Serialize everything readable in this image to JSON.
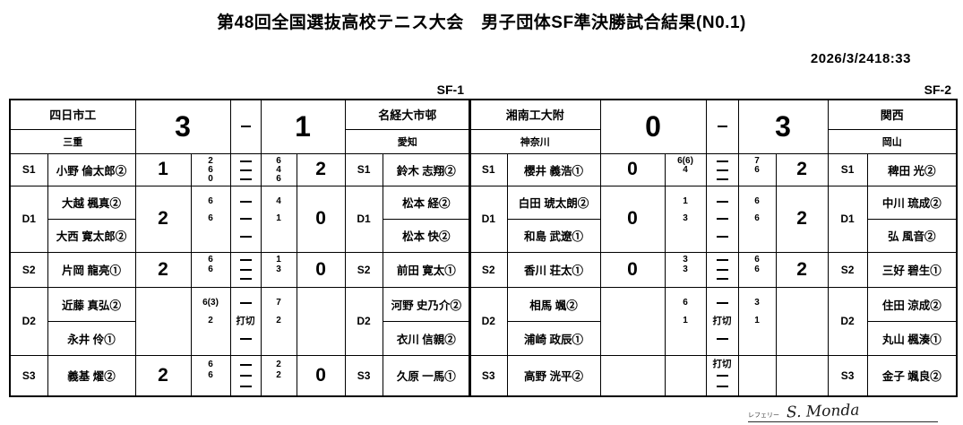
{
  "title": "第48回全国選抜高校テニス大会　男子団体SF準決勝試合結果(N0.1)",
  "datetime": "2026/3/2418:33",
  "signature": {
    "label": "レフェリー",
    "name": "S. Monda"
  },
  "matches": [
    {
      "label": "SF-1",
      "home": {
        "school": "四日市工",
        "pref": "三重",
        "score": "3"
      },
      "score_dash": "－",
      "away": {
        "school": "名経大市邨",
        "pref": "愛知",
        "score": "1"
      },
      "rows": [
        {
          "pos": "S1",
          "type": "singles",
          "home_players": [
            "小野 倫太郎②"
          ],
          "away_players": [
            "鈴木 志翔②"
          ],
          "home_score": "1",
          "away_score": "2",
          "home_sets": [
            "2",
            "6",
            "0"
          ],
          "mid": [
            "－",
            "－",
            "－"
          ],
          "away_sets": [
            "6",
            "4",
            "6"
          ]
        },
        {
          "pos": "D1",
          "type": "doubles",
          "home_players": [
            "大越 楓真②",
            "大西 寛太郎②"
          ],
          "away_players": [
            "松本 経②",
            "松本 快②"
          ],
          "home_score": "2",
          "away_score": "0",
          "home_sets": [
            "6",
            "6",
            ""
          ],
          "mid": [
            "－",
            "－",
            "－"
          ],
          "away_sets": [
            "4",
            "1",
            ""
          ]
        },
        {
          "pos": "S2",
          "type": "singles",
          "home_players": [
            "片岡 龍亮①"
          ],
          "away_players": [
            "前田 寛太①"
          ],
          "home_score": "2",
          "away_score": "0",
          "home_sets": [
            "6",
            "6",
            ""
          ],
          "mid": [
            "－",
            "－",
            "－"
          ],
          "away_sets": [
            "1",
            "3",
            ""
          ]
        },
        {
          "pos": "D2",
          "type": "doubles",
          "home_players": [
            "近藤 真弘②",
            "永井 伶①"
          ],
          "away_players": [
            "河野 史乃介②",
            "衣川 信親②"
          ],
          "home_score": "",
          "away_score": "",
          "home_sets": [
            "6(3)",
            "2",
            ""
          ],
          "mid": [
            "－",
            "打切",
            "－"
          ],
          "away_sets": [
            "7",
            "2",
            ""
          ]
        },
        {
          "pos": "S3",
          "type": "singles",
          "home_players": [
            "義基 燿②"
          ],
          "away_players": [
            "久原 一馬①"
          ],
          "home_score": "2",
          "away_score": "0",
          "home_sets": [
            "6",
            "6",
            ""
          ],
          "mid": [
            "－",
            "－",
            "－"
          ],
          "away_sets": [
            "2",
            "2",
            ""
          ]
        }
      ]
    },
    {
      "label": "SF-2",
      "home": {
        "school": "湘南工大附",
        "pref": "神奈川",
        "score": "0"
      },
      "score_dash": "－",
      "away": {
        "school": "関西",
        "pref": "岡山",
        "score": "3"
      },
      "rows": [
        {
          "pos": "S1",
          "type": "singles",
          "home_players": [
            "櫻井 義浩①"
          ],
          "away_players": [
            "稗田 光②"
          ],
          "home_score": "0",
          "away_score": "2",
          "home_sets": [
            "6(6)",
            "4",
            ""
          ],
          "mid": [
            "－",
            "－",
            "－"
          ],
          "away_sets": [
            "7",
            "6",
            ""
          ]
        },
        {
          "pos": "D1",
          "type": "doubles",
          "home_players": [
            "白田 琥太朗②",
            "和島 武遼①"
          ],
          "away_players": [
            "中川 琉成②",
            "弘 風音②"
          ],
          "home_score": "0",
          "away_score": "2",
          "home_sets": [
            "1",
            "3",
            ""
          ],
          "mid": [
            "－",
            "－",
            "－"
          ],
          "away_sets": [
            "6",
            "6",
            ""
          ]
        },
        {
          "pos": "S2",
          "type": "singles",
          "home_players": [
            "香川 荘太①"
          ],
          "away_players": [
            "三好 碧生①"
          ],
          "home_score": "0",
          "away_score": "2",
          "home_sets": [
            "3",
            "3",
            ""
          ],
          "mid": [
            "－",
            "－",
            "－"
          ],
          "away_sets": [
            "6",
            "6",
            ""
          ]
        },
        {
          "pos": "D2",
          "type": "doubles",
          "home_players": [
            "相馬 颯②",
            "浦崎 政辰①"
          ],
          "away_players": [
            "住田 涼成②",
            "丸山 楓湊①"
          ],
          "home_score": "",
          "away_score": "",
          "home_sets": [
            "6",
            "1",
            ""
          ],
          "mid": [
            "－",
            "打切",
            "－"
          ],
          "away_sets": [
            "3",
            "1",
            ""
          ]
        },
        {
          "pos": "S3",
          "type": "singles",
          "home_players": [
            "高野 洸平②"
          ],
          "away_players": [
            "金子 颯良②"
          ],
          "home_score": "",
          "away_score": "",
          "home_sets": [
            "",
            "",
            ""
          ],
          "mid": [
            "打切",
            "－",
            "－"
          ],
          "away_sets": [
            "",
            "",
            ""
          ]
        }
      ]
    }
  ]
}
